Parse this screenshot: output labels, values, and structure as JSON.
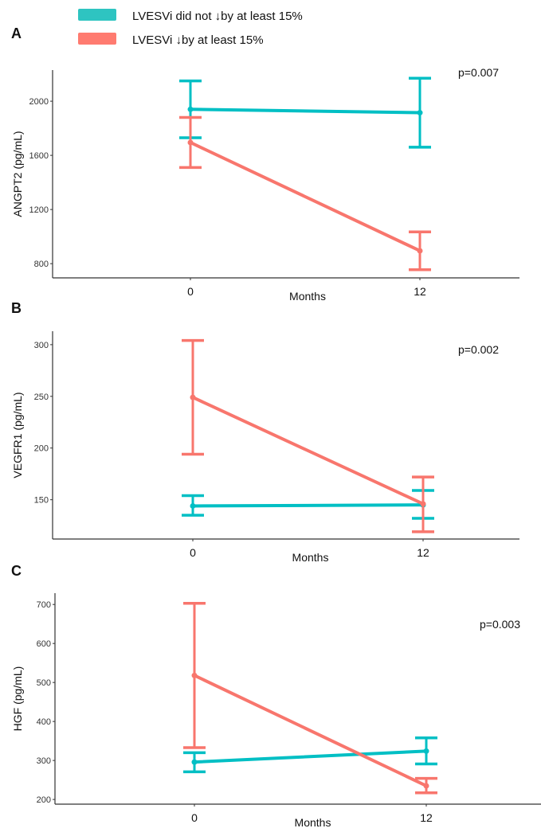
{
  "legend": [
    {
      "label": "LVESVi did not ↓by at least 15%",
      "color": "#00BFC4"
    },
    {
      "label": "LVESVi ↓by at least 15%",
      "color": "#F8766D"
    }
  ],
  "chart_data": [
    {
      "panel": "A",
      "type": "line",
      "xlabel": "Months",
      "ylabel": "ANGPT2 (pg/mL)",
      "x": [
        0,
        12
      ],
      "x_tick_labels": [
        "0",
        "12"
      ],
      "yticks": [
        800,
        1200,
        1600,
        2000
      ],
      "ylim": [
        695,
        2230
      ],
      "annotation": "p=0.007",
      "grid": false,
      "series": [
        {
          "name": "LVESVi did not ↓by at least 15%",
          "color": "#00BFC4",
          "values": [
            1940,
            1915
          ],
          "lower": [
            1730,
            1660
          ],
          "upper": [
            2150,
            2170
          ]
        },
        {
          "name": "LVESVi ↓by at least 15%",
          "color": "#F8766D",
          "values": [
            1695,
            895
          ],
          "lower": [
            1510,
            755
          ],
          "upper": [
            1880,
            1035
          ]
        }
      ]
    },
    {
      "panel": "B",
      "type": "line",
      "xlabel": "Months",
      "ylabel": "VEGFR1 (pg/mL)",
      "x": [
        0,
        12
      ],
      "x_tick_labels": [
        "0",
        "12"
      ],
      "yticks": [
        150,
        200,
        250,
        300
      ],
      "ylim": [
        112,
        313
      ],
      "annotation": "p=0.002",
      "grid": false,
      "series": [
        {
          "name": "LVESVi did not ↓by at least 15%",
          "color": "#00BFC4",
          "values": [
            144,
            145
          ],
          "lower": [
            135,
            132
          ],
          "upper": [
            154,
            159
          ]
        },
        {
          "name": "LVESVi ↓by at least 15%",
          "color": "#F8766D",
          "values": [
            249,
            146
          ],
          "lower": [
            194,
            119
          ],
          "upper": [
            304,
            172
          ]
        }
      ]
    },
    {
      "panel": "C",
      "type": "line",
      "xlabel": "Months",
      "ylabel": "HGF (pg/mL)",
      "x": [
        0,
        12
      ],
      "x_tick_labels": [
        "0",
        "12"
      ],
      "yticks": [
        200,
        300,
        400,
        500,
        600,
        700
      ],
      "ylim": [
        188,
        729
      ],
      "annotation": "p=0.003",
      "grid": false,
      "series": [
        {
          "name": "LVESVi did not ↓by at least 15%",
          "color": "#00BFC4",
          "values": [
            296,
            324
          ],
          "lower": [
            271,
            291
          ],
          "upper": [
            320,
            358
          ]
        },
        {
          "name": "LVESVi ↓by at least 15%",
          "color": "#F8766D",
          "values": [
            518,
            235
          ],
          "lower": [
            333,
            217
          ],
          "upper": [
            703,
            254
          ]
        }
      ]
    }
  ]
}
